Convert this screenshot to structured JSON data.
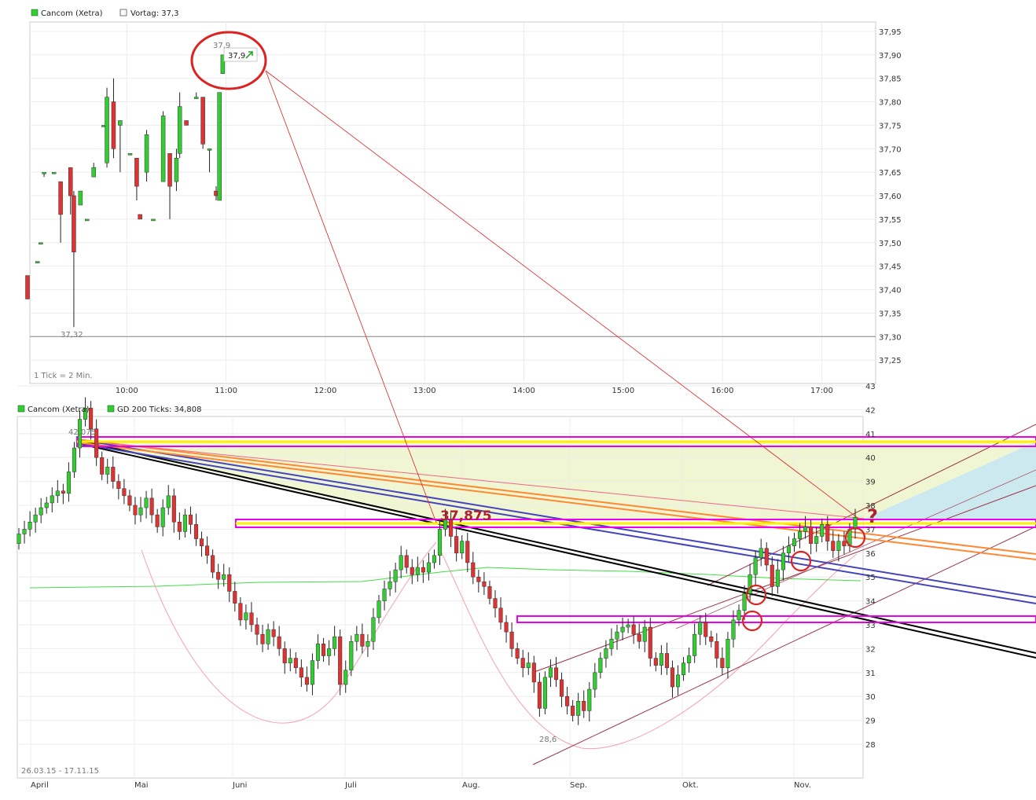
{
  "chart_data": [
    {
      "type": "candlestick",
      "legend": [
        {
          "name": "Cancom (Xetra)",
          "color": "#33cc33"
        },
        {
          "name": "Vortag: 37,3",
          "color": "#ffffff"
        }
      ],
      "xticks": [
        "10:00",
        "11:00",
        "12:00",
        "13:00",
        "14:00",
        "15:00",
        "16:00",
        "17:00"
      ],
      "yticks": [
        "37,25",
        "37,30",
        "37,35",
        "37,40",
        "37,45",
        "37,50",
        "37,55",
        "37,60",
        "37,65",
        "37,70",
        "37,75",
        "37,80",
        "37,85",
        "37,90",
        "37,95"
      ],
      "ylim": [
        37.2,
        37.97
      ],
      "prev_close": 37.3,
      "footnote": "1 Tick = 2 Min.",
      "low_label": "37,32",
      "high_label": "37,9",
      "last_label": "37,9",
      "candles": [
        {
          "t": "09:00",
          "o": 37.43,
          "h": 37.43,
          "l": 37.38,
          "c": 37.38
        },
        {
          "t": "09:06",
          "o": 37.46,
          "h": 37.46,
          "l": 37.46,
          "c": 37.46
        },
        {
          "t": "09:08",
          "o": 37.5,
          "h": 37.5,
          "l": 37.5,
          "c": 37.5
        },
        {
          "t": "09:10",
          "o": 37.65,
          "h": 37.65,
          "l": 37.64,
          "c": 37.65
        },
        {
          "t": "09:16",
          "o": 37.65,
          "h": 37.65,
          "l": 37.65,
          "c": 37.65
        },
        {
          "t": "09:20",
          "o": 37.63,
          "h": 37.63,
          "l": 37.5,
          "c": 37.56
        },
        {
          "t": "09:26",
          "o": 37.66,
          "h": 37.66,
          "l": 37.56,
          "c": 37.6
        },
        {
          "t": "09:28",
          "o": 37.6,
          "h": 37.61,
          "l": 37.32,
          "c": 37.48
        },
        {
          "t": "09:32",
          "o": 37.58,
          "h": 37.61,
          "l": 37.58,
          "c": 37.61
        },
        {
          "t": "09:36",
          "o": 37.55,
          "h": 37.55,
          "l": 37.55,
          "c": 37.55
        },
        {
          "t": "09:40",
          "o": 37.64,
          "h": 37.67,
          "l": 37.64,
          "c": 37.66
        },
        {
          "t": "09:46",
          "o": 37.75,
          "h": 37.75,
          "l": 37.75,
          "c": 37.75
        },
        {
          "t": "09:48",
          "o": 37.67,
          "h": 37.83,
          "l": 37.66,
          "c": 37.81
        },
        {
          "t": "09:52",
          "o": 37.8,
          "h": 37.85,
          "l": 37.68,
          "c": 37.7
        },
        {
          "t": "09:56",
          "o": 37.75,
          "h": 37.76,
          "l": 37.65,
          "c": 37.76
        },
        {
          "t": "10:02",
          "o": 37.69,
          "h": 37.69,
          "l": 37.69,
          "c": 37.69
        },
        {
          "t": "10:06",
          "o": 37.68,
          "h": 37.68,
          "l": 37.59,
          "c": 37.62
        },
        {
          "t": "10:08",
          "o": 37.56,
          "h": 37.56,
          "l": 37.55,
          "c": 37.55
        },
        {
          "t": "10:12",
          "o": 37.65,
          "h": 37.74,
          "l": 37.63,
          "c": 37.73
        },
        {
          "t": "10:16",
          "o": 37.55,
          "h": 37.55,
          "l": 37.55,
          "c": 37.55
        },
        {
          "t": "10:22",
          "o": 37.63,
          "h": 37.78,
          "l": 37.63,
          "c": 37.77
        },
        {
          "t": "10:26",
          "o": 37.69,
          "h": 37.69,
          "l": 37.55,
          "c": 37.62
        },
        {
          "t": "10:30",
          "o": 37.63,
          "h": 37.7,
          "l": 37.61,
          "c": 37.68
        },
        {
          "t": "10:32",
          "o": 37.69,
          "h": 37.82,
          "l": 37.68,
          "c": 37.79
        },
        {
          "t": "10:36",
          "o": 37.76,
          "h": 37.76,
          "l": 37.75,
          "c": 37.75
        },
        {
          "t": "10:42",
          "o": 37.81,
          "h": 37.82,
          "l": 37.81,
          "c": 37.81
        },
        {
          "t": "10:46",
          "o": 37.81,
          "h": 37.81,
          "l": 37.7,
          "c": 37.71
        },
        {
          "t": "10:50",
          "o": 37.7,
          "h": 37.7,
          "l": 37.65,
          "c": 37.7
        },
        {
          "t": "10:54",
          "o": 37.61,
          "h": 37.62,
          "l": 37.59,
          "c": 37.6
        },
        {
          "t": "10:56",
          "o": 37.59,
          "h": 37.82,
          "l": 37.59,
          "c": 37.82
        },
        {
          "t": "10:58",
          "o": 37.86,
          "h": 37.9,
          "l": 37.86,
          "c": 37.9
        }
      ]
    },
    {
      "type": "candlestick",
      "legend": [
        {
          "name": "Cancom (Xetra)",
          "color": "#33cc33"
        },
        {
          "name": "GD 200 Ticks: 34,808",
          "color": "#33cc33"
        }
      ],
      "xticks": [
        "April",
        "Mai",
        "Juni",
        "Juli",
        "Aug.",
        "Sep.",
        "Okt.",
        "Nov."
      ],
      "yticks": [
        "28",
        "29",
        "30",
        "31",
        "32",
        "33",
        "34",
        "35",
        "36",
        "37",
        "38",
        "39",
        "40",
        "41",
        "42",
        "43"
      ],
      "ylim": [
        27.5,
        43.1
      ],
      "date_range": "26.03.15 - 17.11.15",
      "high_label": "42,075",
      "low_label": "28,6",
      "annotation": "37,875",
      "question_mark": "?",
      "ma_level": 34.808,
      "closes": [
        36.8,
        37.0,
        37.3,
        37.6,
        37.9,
        38.1,
        38.4,
        38.6,
        38.5,
        39.4,
        40.4,
        41.6,
        42.07,
        41.2,
        40.0,
        39.3,
        39.6,
        39.0,
        38.7,
        38.4,
        38.0,
        37.6,
        37.9,
        38.3,
        37.6,
        37.1,
        37.9,
        38.4,
        37.3,
        36.9,
        37.6,
        37.2,
        36.6,
        36.3,
        35.9,
        35.2,
        34.9,
        35.1,
        34.4,
        33.9,
        33.2,
        33.5,
        33.0,
        32.6,
        32.2,
        32.8,
        32.5,
        32.0,
        31.4,
        31.6,
        31.2,
        30.8,
        30.5,
        31.5,
        32.2,
        31.7,
        32.0,
        32.5,
        30.5,
        31.1,
        32.3,
        32.6,
        32.1,
        32.3,
        33.3,
        34.0,
        34.5,
        34.8,
        35.3,
        35.9,
        35.4,
        35.1,
        35.4,
        35.2,
        35.6,
        35.9,
        37.0,
        37.4,
        36.7,
        36.0,
        36.5,
        35.6,
        35.0,
        34.8,
        34.6,
        34.1,
        33.7,
        33.1,
        32.7,
        32.0,
        31.6,
        31.2,
        31.4,
        30.6,
        29.5,
        30.8,
        31.2,
        30.7,
        30.0,
        29.6,
        29.2,
        29.8,
        29.4,
        30.3,
        31.0,
        31.6,
        32.0,
        32.4,
        32.7,
        32.9,
        33.0,
        32.6,
        32.3,
        32.9,
        31.6,
        31.3,
        31.8,
        31.2,
        30.4,
        30.9,
        31.4,
        31.7,
        32.6,
        33.1,
        32.5,
        32.3,
        31.6,
        31.2,
        32.4,
        33.2,
        33.6,
        34.3,
        35.1,
        35.8,
        36.2,
        35.5,
        34.6,
        35.3,
        36.0,
        36.3,
        36.6,
        36.9,
        37.1,
        36.4,
        36.7,
        37.2,
        36.5,
        36.1,
        36.5,
        36.3,
        37.0,
        37.5
      ]
    }
  ]
}
